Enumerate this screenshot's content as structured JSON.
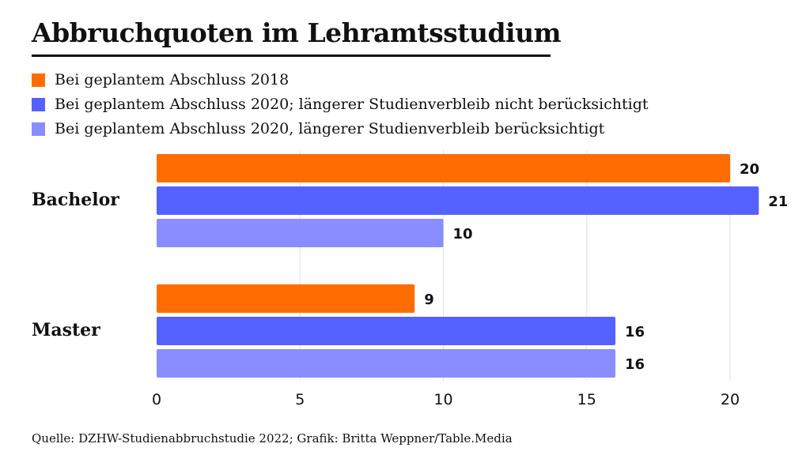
{
  "chart_data": {
    "type": "bar",
    "orientation": "horizontal",
    "title": "Abbruchquoten im Lehramtsstudium",
    "categories": [
      "Bachelor",
      "Master"
    ],
    "series": [
      {
        "name": "Bei geplantem Abschluss 2018",
        "color": "#ff6d00",
        "values": [
          20,
          9
        ]
      },
      {
        "name": "Bei geplantem Abschluss 2020; längerer Studienverbleib nicht berücksichtigt",
        "color": "#5561ff",
        "values": [
          21,
          16
        ]
      },
      {
        "name": "Bei geplantem Abschluss 2020, längerer Studienverbleib berücksichtigt",
        "color": "#8a8dff",
        "values": [
          10,
          16
        ]
      }
    ],
    "xlabel": "",
    "ylabel": "",
    "xlim": [
      0,
      21
    ],
    "xticks": [
      0,
      5,
      10,
      15,
      20
    ],
    "xtick_labels": [
      "0",
      "5",
      "10",
      "15",
      "20"
    ],
    "grid": true,
    "legend_position": "top-left",
    "data_labels": true
  },
  "source": "Quelle: DZHW-Studienabbruchstudie 2022; Grafik: Britta Weppner/Table.Media"
}
